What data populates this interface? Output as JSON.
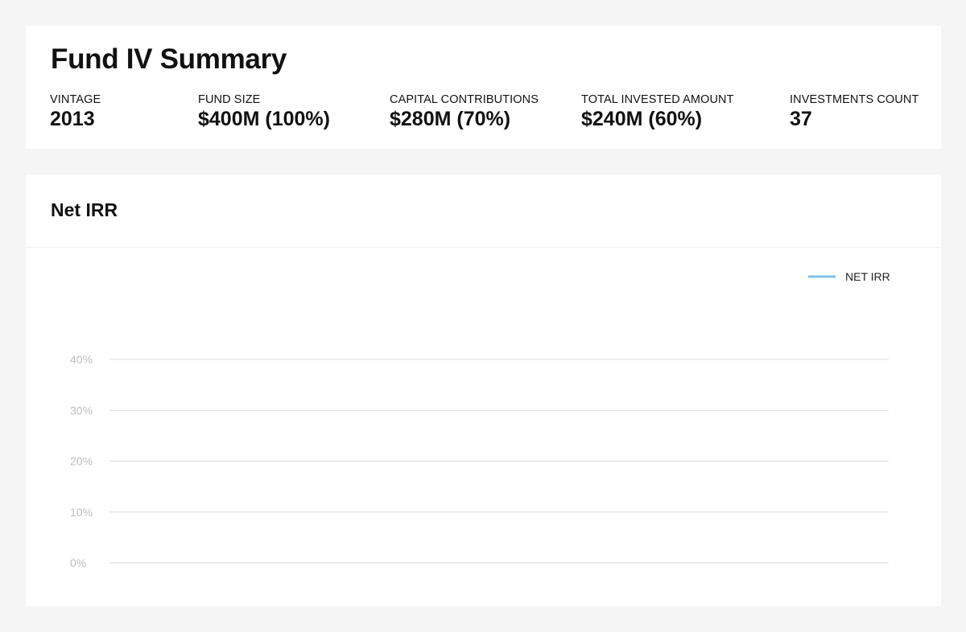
{
  "summary": {
    "title": "Fund IV Summary",
    "stats": [
      {
        "label": "VINTAGE",
        "value": "2013"
      },
      {
        "label": "FUND SIZE",
        "value": "$400M (100%)"
      },
      {
        "label": "CAPITAL CONTRIBUTIONS",
        "value": "$280M (70%)"
      },
      {
        "label": "TOTAL INVESTED AMOUNT",
        "value": "$240M (60%)"
      },
      {
        "label": "INVESTMENTS COUNT",
        "value": "37"
      }
    ]
  },
  "chart_section": {
    "title": "Net IRR"
  },
  "chart_data": {
    "type": "line",
    "title": "",
    "xlabel": "",
    "ylabel": "",
    "ylim": [
      0,
      40
    ],
    "yticks": [
      0,
      10,
      20,
      30,
      40
    ],
    "ytick_labels": [
      "0%",
      "10%",
      "20%",
      "30%",
      "40%"
    ],
    "grid": true,
    "legend_position": "top-right",
    "x": [],
    "series": [
      {
        "name": "NET IRR",
        "color": "#7fc1e6",
        "values": []
      }
    ]
  },
  "colors": {
    "background": "#f5f5f5",
    "card": "#ffffff",
    "gridline": "#dcdcdc",
    "tick_label": "#bdbdbd",
    "series_line": "#7fc1e6"
  }
}
